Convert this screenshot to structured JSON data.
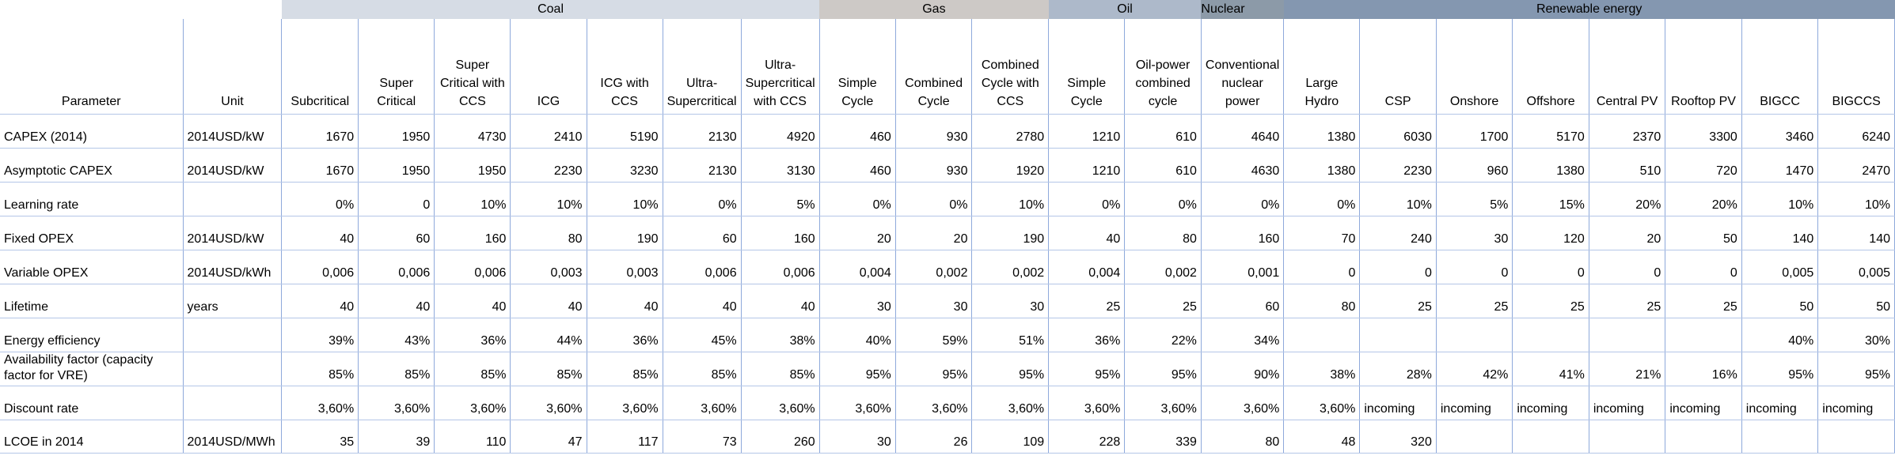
{
  "groups": [
    {
      "label": "",
      "span": 2
    },
    {
      "label": "Coal",
      "span": 7
    },
    {
      "label": "Gas",
      "span": 3
    },
    {
      "label": "Oil",
      "span": 2
    },
    {
      "label": "Nuclear",
      "span": 1
    },
    {
      "label": "Renewable energy",
      "span": 8
    }
  ],
  "headers": [
    "Parameter",
    "Unit",
    "Subcritical",
    "Super Critical",
    "Super Critical with CCS",
    "ICG",
    "ICG with CCS",
    "Ultra-Supercritical",
    "Ultra-Supercritical with CCS",
    "Simple Cycle",
    "Combined Cycle",
    "Combined Cycle with CCS",
    "Simple Cycle",
    "Oil-power combined cycle",
    "Conventional nuclear power",
    "Large Hydro",
    "CSP",
    "Onshore",
    "Offshore",
    "Central PV",
    "Rooftop PV",
    "BIGCC",
    "BIGCCS"
  ],
  "rows": [
    {
      "parameter": "CAPEX (2014)",
      "unit": "2014USD/kW",
      "values": [
        "1670",
        "1950",
        "4730",
        "2410",
        "5190",
        "2130",
        "4920",
        "460",
        "930",
        "2780",
        "1210",
        "610",
        "4640",
        "1380",
        "6030",
        "1700",
        "5170",
        "2370",
        "3300",
        "3460",
        "6240"
      ]
    },
    {
      "parameter": "Asymptotic CAPEX",
      "unit": "2014USD/kW",
      "values": [
        "1670",
        "1950",
        "1950",
        "2230",
        "3230",
        "2130",
        "3130",
        "460",
        "930",
        "1920",
        "1210",
        "610",
        "4630",
        "1380",
        "2230",
        "960",
        "1380",
        "510",
        "720",
        "1470",
        "2470"
      ]
    },
    {
      "parameter": "Learning rate",
      "unit": "",
      "values": [
        "0%",
        "0",
        "10%",
        "10%",
        "10%",
        "0%",
        "5%",
        "0%",
        "0%",
        "10%",
        "0%",
        "0%",
        "0%",
        "0%",
        "10%",
        "5%",
        "15%",
        "20%",
        "20%",
        "10%",
        "10%"
      ]
    },
    {
      "parameter": "Fixed OPEX",
      "unit": "2014USD/kW",
      "values": [
        "40",
        "60",
        "160",
        "80",
        "190",
        "60",
        "160",
        "20",
        "20",
        "190",
        "40",
        "80",
        "160",
        "70",
        "240",
        "30",
        "120",
        "20",
        "50",
        "140",
        "140"
      ]
    },
    {
      "parameter": "Variable OPEX",
      "unit": "2014USD/kWh",
      "values": [
        "0,006",
        "0,006",
        "0,006",
        "0,003",
        "0,003",
        "0,006",
        "0,006",
        "0,004",
        "0,002",
        "0,002",
        "0,004",
        "0,002",
        "0,001",
        "0",
        "0",
        "0",
        "0",
        "0",
        "0",
        "0,005",
        "0,005"
      ]
    },
    {
      "parameter": "Lifetime",
      "unit": "years",
      "values": [
        "40",
        "40",
        "40",
        "40",
        "40",
        "40",
        "40",
        "30",
        "30",
        "30",
        "25",
        "25",
        "60",
        "80",
        "25",
        "25",
        "25",
        "25",
        "25",
        "50",
        "50"
      ]
    },
    {
      "parameter": "Energy efficiency",
      "unit": "",
      "values": [
        "39%",
        "43%",
        "36%",
        "44%",
        "36%",
        "45%",
        "38%",
        "40%",
        "59%",
        "51%",
        "36%",
        "22%",
        "34%",
        "",
        "",
        "",
        "",
        "",
        "",
        "40%",
        "30%"
      ]
    },
    {
      "parameter": "Availability factor (capacity factor for VRE)",
      "unit": "",
      "values": [
        "85%",
        "85%",
        "85%",
        "85%",
        "85%",
        "85%",
        "85%",
        "95%",
        "95%",
        "95%",
        "95%",
        "95%",
        "90%",
        "38%",
        "28%",
        "42%",
        "41%",
        "21%",
        "16%",
        "95%",
        "95%"
      ]
    },
    {
      "parameter": "Discount rate",
      "unit": "",
      "values": [
        "3,60%",
        "3,60%",
        "3,60%",
        "3,60%",
        "3,60%",
        "3,60%",
        "3,60%",
        "3,60%",
        "3,60%",
        "3,60%",
        "3,60%",
        "3,60%",
        "3,60%",
        "3,60%",
        "incoming",
        "incoming",
        "incoming",
        "incoming",
        "incoming",
        "incoming",
        "incoming"
      ]
    },
    {
      "parameter": "LCOE in 2014",
      "unit": "2014USD/MWh",
      "values": [
        "35",
        "39",
        "110",
        "47",
        "117",
        "73",
        "260",
        "30",
        "26",
        "109",
        "228",
        "339",
        "80",
        "48",
        "320",
        "",
        "",
        "",
        "",
        "",
        ""
      ]
    }
  ]
}
